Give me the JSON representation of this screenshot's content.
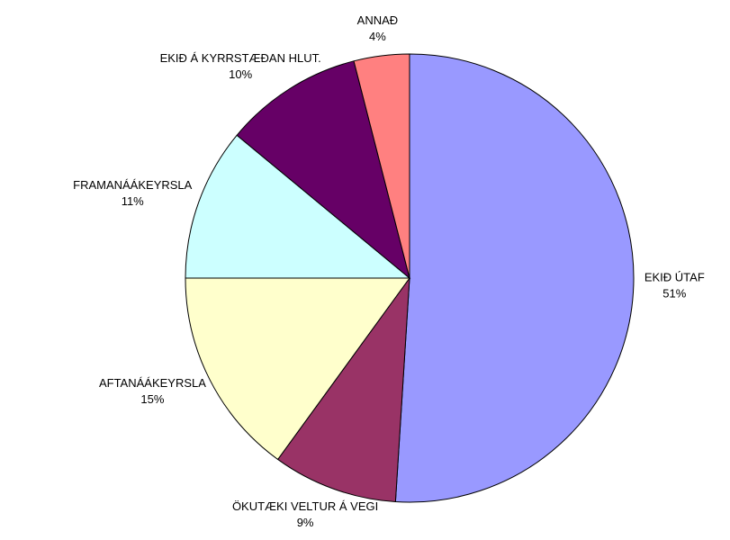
{
  "chart_data": {
    "type": "pie",
    "categories": [
      "EKIÐ ÚTAF",
      "ÖKUTÆKI VELTUR Á VEGI",
      "AFTANÁÁKEYRSLA",
      "FRAMANÁÁKEYRSLA",
      "EKIÐ Á KYRRSTÆÐAN HLUT.",
      "ANNAÐ"
    ],
    "values": [
      51,
      9,
      15,
      11,
      10,
      4
    ],
    "value_labels": [
      "51%",
      "9%",
      "15%",
      "11%",
      "10%",
      "4%"
    ],
    "colors": [
      "#9999ff",
      "#993366",
      "#ffffcc",
      "#ccffff",
      "#660066",
      "#ff8080"
    ]
  }
}
